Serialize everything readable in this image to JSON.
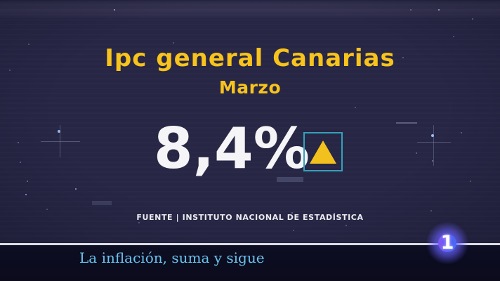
{
  "header": {
    "title": "Ipc general Canarias",
    "subtitle": "Marzo"
  },
  "stat": {
    "value": "8,4%",
    "trend": "up",
    "trend_icon": "triangle-up-icon",
    "source": "FUENTE | INSTITUTO NACIONAL DE ESTADÍSTICA"
  },
  "ticker": {
    "headline": "La inflación, suma y sigue",
    "channel_logo": "1"
  },
  "colors": {
    "title_yellow": "#f7c31c",
    "value_white": "#f5f5f7",
    "trend_border_teal": "#35a0ba",
    "triangle_yellow": "#f3c11e",
    "ticker_text_blue": "#69c4ee",
    "background_navy": "#272645",
    "ticker_bar_dark": "#0c0c1f",
    "logo_blue": "#3f6cf4",
    "logo_purple": "#8a55f0"
  }
}
